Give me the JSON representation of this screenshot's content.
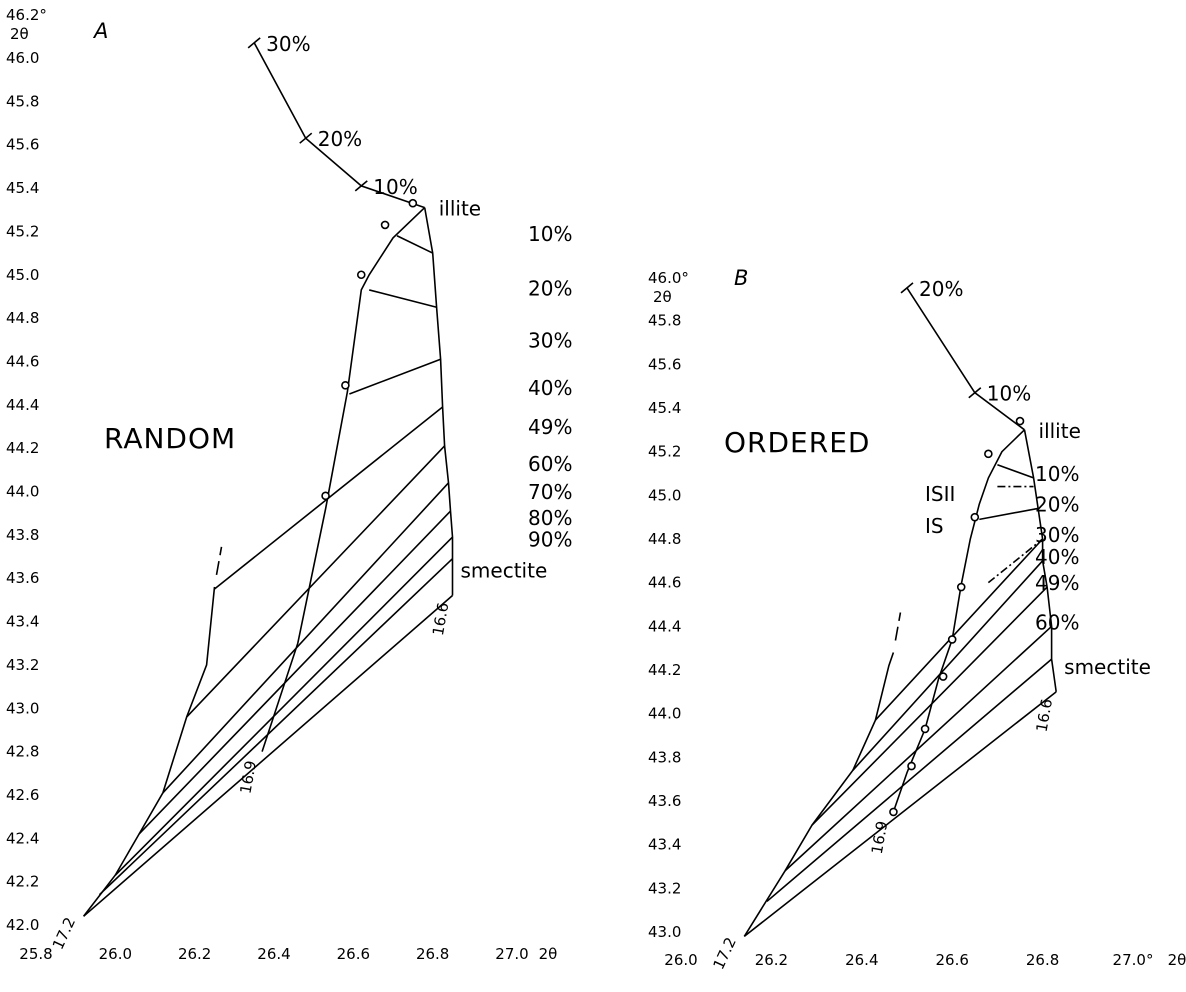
{
  "chart_data": [
    {
      "type": "line",
      "panel_label": "A",
      "mode": "RANDOM",
      "x_unit": "2θ",
      "y_unit": "2θ",
      "x_axis_end_label": "27.0",
      "y_axis_top_label": "46.2°",
      "xlim": [
        25.8,
        27.0
      ],
      "ylim": [
        41.85,
        46.2
      ],
      "x_ticks": [
        "25.8",
        "26.0",
        "26.2",
        "26.4",
        "26.6",
        "26.8",
        "27.0"
      ],
      "y_ticks": [
        "42.0",
        "42.2",
        "42.4",
        "42.6",
        "42.8",
        "43.0",
        "43.2",
        "43.4",
        "43.6",
        "43.8",
        "44.0",
        "44.2",
        "44.4",
        "44.6",
        "44.8",
        "45.0",
        "45.2",
        "45.4",
        "45.6",
        "45.8",
        "46.0"
      ],
      "endpoints": {
        "illite": [
          26.78,
          45.31
        ],
        "smectite_16_6": [
          26.85,
          43.52
        ],
        "smectite_16_9": [
          26.37,
          42.8
        ],
        "smectite_17_2": [
          25.92,
          42.04
        ]
      },
      "endpoint_labels": {
        "illite": "illite",
        "smectite": "smectite",
        "d16_6": "16.6",
        "d16_9": "16.9",
        "d17_2": "17.2"
      },
      "illite_curve": {
        "points": [
          [
            26.35,
            46.07
          ],
          [
            26.48,
            45.63
          ],
          [
            26.62,
            45.41
          ],
          [
            26.78,
            45.31
          ]
        ],
        "tick_labels": [
          "30%",
          "20%",
          "10%"
        ]
      },
      "curve_16_9": [
        [
          26.78,
          45.31
        ],
        [
          26.7,
          45.17
        ],
        [
          26.64,
          45.0
        ],
        [
          26.62,
          44.93
        ],
        [
          26.585,
          44.46
        ],
        [
          26.53,
          43.92
        ],
        [
          26.46,
          43.3
        ],
        [
          26.37,
          42.8
        ]
      ],
      "curve_17_2": [
        [
          26.25,
          43.56
        ],
        [
          26.23,
          43.2
        ],
        [
          26.18,
          42.96
        ],
        [
          26.12,
          42.61
        ],
        [
          26.06,
          42.42
        ],
        [
          26.0,
          42.23
        ],
        [
          25.92,
          42.04
        ]
      ],
      "right_edge": [
        [
          26.78,
          45.31
        ],
        [
          26.8,
          45.1
        ],
        [
          26.81,
          44.85
        ],
        [
          26.82,
          44.61
        ],
        [
          26.825,
          44.39
        ],
        [
          26.83,
          44.21
        ],
        [
          26.84,
          44.04
        ],
        [
          26.845,
          43.91
        ],
        [
          26.85,
          43.79
        ],
        [
          26.85,
          43.69
        ],
        [
          26.85,
          43.52
        ]
      ],
      "composition_lines": [
        {
          "label": "10%",
          "from": [
            26.71,
            45.18
          ],
          "to": [
            26.8,
            45.1
          ]
        },
        {
          "label": "20%",
          "from": [
            26.64,
            44.93
          ],
          "to": [
            26.81,
            44.85
          ]
        },
        {
          "label": "30%",
          "from": [
            26.59,
            44.45
          ],
          "to": [
            26.82,
            44.61
          ]
        },
        {
          "label": "40%",
          "from": [
            26.25,
            43.55
          ],
          "to": [
            26.825,
            44.39
          ]
        },
        {
          "label": "49%",
          "from": [
            26.18,
            42.96
          ],
          "to": [
            26.83,
            44.21
          ]
        },
        {
          "label": "60%",
          "from": [
            26.12,
            42.61
          ],
          "to": [
            26.84,
            44.04
          ]
        },
        {
          "label": "70%",
          "from": [
            26.06,
            42.42
          ],
          "to": [
            26.845,
            43.91
          ]
        },
        {
          "label": "80%",
          "from": [
            26.0,
            42.23
          ],
          "to": [
            26.85,
            43.79
          ]
        },
        {
          "label": "90%",
          "from": [
            25.96,
            42.14
          ],
          "to": [
            26.85,
            43.69
          ]
        },
        {
          "label": "smectite",
          "from": [
            25.92,
            42.04
          ],
          "to": [
            26.85,
            43.52
          ]
        }
      ],
      "data_points": [
        [
          26.75,
          45.33
        ],
        [
          26.68,
          45.23
        ],
        [
          26.62,
          45.0
        ],
        [
          26.58,
          44.49
        ],
        [
          26.53,
          43.98
        ]
      ]
    },
    {
      "type": "line",
      "panel_label": "B",
      "mode": "ORDERED",
      "x_unit": "2θ",
      "y_unit": "2θ",
      "x_axis_end_label": "27.0°",
      "y_axis_top_label": "46.0°",
      "xlim": [
        26.0,
        27.0
      ],
      "ylim": [
        42.85,
        46.0
      ],
      "x_ticks": [
        "26.0",
        "26.2",
        "26.4",
        "26.6",
        "26.8",
        "27.0°"
      ],
      "y_ticks": [
        "43.0",
        "43.2",
        "43.4",
        "43.6",
        "43.8",
        "44.0",
        "44.2",
        "44.4",
        "44.6",
        "44.8",
        "45.0",
        "45.2",
        "45.4",
        "45.6",
        "45.8"
      ],
      "endpoints": {
        "illite": [
          26.76,
          45.3
        ],
        "smectite_16_6": [
          26.83,
          44.1
        ],
        "smectite_16_9": [
          26.47,
          43.55
        ],
        "smectite_17_2": [
          26.14,
          42.98
        ]
      },
      "endpoint_labels": {
        "illite": "illite",
        "smectite": "smectite",
        "d16_6": "16.6",
        "d16_9": "16.9",
        "d17_2": "17.2"
      },
      "illite_curve": {
        "points": [
          [
            26.5,
            45.95
          ],
          [
            26.65,
            45.47
          ],
          [
            26.76,
            45.3
          ]
        ],
        "tick_labels": [
          "20%",
          "10%"
        ]
      },
      "curve_16_9": [
        [
          26.76,
          45.3
        ],
        [
          26.71,
          45.2
        ],
        [
          26.68,
          45.08
        ],
        [
          26.66,
          44.96
        ],
        [
          26.64,
          44.8
        ],
        [
          26.62,
          44.59
        ],
        [
          26.6,
          44.34
        ],
        [
          26.57,
          44.16
        ],
        [
          26.54,
          43.93
        ],
        [
          26.5,
          43.73
        ],
        [
          26.47,
          43.55
        ]
      ],
      "curve_17_2": [
        [
          26.47,
          44.28
        ],
        [
          26.46,
          44.22
        ],
        [
          26.43,
          43.97
        ],
        [
          26.38,
          43.74
        ],
        [
          26.29,
          43.49
        ],
        [
          26.23,
          43.28
        ],
        [
          26.14,
          42.98
        ]
      ],
      "right_edge": [
        [
          26.76,
          45.3
        ],
        [
          26.78,
          45.08
        ],
        [
          26.79,
          44.94
        ],
        [
          26.8,
          44.8
        ],
        [
          26.8,
          44.7
        ],
        [
          26.81,
          44.58
        ],
        [
          26.82,
          44.4
        ],
        [
          26.82,
          44.25
        ],
        [
          26.83,
          44.1
        ]
      ],
      "composition_lines": [
        {
          "label": "10%",
          "from": [
            26.7,
            45.14
          ],
          "to": [
            26.78,
            45.08
          ]
        },
        {
          "label": "20%",
          "from": [
            26.66,
            44.89
          ],
          "to": [
            26.79,
            44.94
          ]
        },
        {
          "label": "30%",
          "from": [
            26.43,
            43.97
          ],
          "to": [
            26.8,
            44.8
          ]
        },
        {
          "label": "40%",
          "from": [
            26.38,
            43.74
          ],
          "to": [
            26.8,
            44.7
          ]
        },
        {
          "label": "49%",
          "from": [
            26.29,
            43.49
          ],
          "to": [
            26.81,
            44.58
          ]
        },
        {
          "label": "60%",
          "from": [
            26.23,
            43.28
          ],
          "to": [
            26.82,
            44.4
          ]
        },
        {
          "label": "",
          "from": [
            26.19,
            43.14
          ],
          "to": [
            26.82,
            44.25
          ]
        },
        {
          "label": "smectite",
          "from": [
            26.14,
            42.98
          ],
          "to": [
            26.83,
            44.1
          ]
        }
      ],
      "dashed_lines": [
        {
          "label": "ISII",
          "from": [
            26.7,
            45.04
          ],
          "to": [
            26.78,
            45.04
          ]
        },
        {
          "label": "",
          "from": [
            26.68,
            44.6
          ],
          "to": [
            26.8,
            44.8
          ]
        }
      ],
      "ordering_labels": [
        "ISII",
        "IS"
      ],
      "data_points": [
        [
          26.75,
          45.34
        ],
        [
          26.68,
          45.19
        ],
        [
          26.65,
          44.9
        ],
        [
          26.62,
          44.58
        ],
        [
          26.6,
          44.34
        ],
        [
          26.58,
          44.17
        ],
        [
          26.54,
          43.93
        ],
        [
          26.51,
          43.76
        ],
        [
          26.47,
          43.55
        ]
      ]
    }
  ]
}
